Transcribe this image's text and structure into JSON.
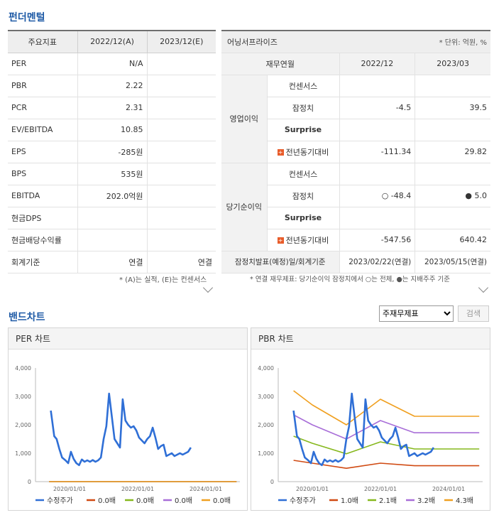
{
  "fundamentals": {
    "title": "펀더멘털",
    "header": [
      "주요지표",
      "2022/12(A)",
      "2023/12(E)"
    ],
    "rows": [
      {
        "label": "PER",
        "a": "N/A",
        "e": ""
      },
      {
        "label": "PBR",
        "a": "2.22",
        "e": ""
      },
      {
        "label": "PCR",
        "a": "2.31",
        "e": ""
      },
      {
        "label": "EV/EBITDA",
        "a": "10.85",
        "e": ""
      },
      {
        "label": "EPS",
        "a": "-285원",
        "e": ""
      },
      {
        "label": "BPS",
        "a": "535원",
        "e": ""
      },
      {
        "label": "EBITDA",
        "a": "202.0억원",
        "e": ""
      },
      {
        "label": "현금DPS",
        "a": "",
        "e": ""
      },
      {
        "label": "현금배당수익률",
        "a": "",
        "e": ""
      },
      {
        "label": "회계기준",
        "a": "연결",
        "e": "연결"
      }
    ],
    "note": "* (A)는 실적, (E)는 컨센서스"
  },
  "earnings": {
    "title": "어닝서프라이즈",
    "unit": "* 단위: 억원, %",
    "header": [
      "재무연월",
      "2022/12",
      "2023/03"
    ],
    "groups": [
      {
        "name": "영업이익",
        "rows": [
          {
            "label": "컨센서스",
            "v1": "",
            "v2": ""
          },
          {
            "label": "잠정치",
            "v1": "-4.5",
            "v2": "39.5"
          },
          {
            "label": "Surprise",
            "v1": "",
            "v2": ""
          },
          {
            "label": "전년동기대비",
            "v1": "-111.34",
            "v2": "29.82"
          }
        ]
      },
      {
        "name": "당기순이익",
        "rows": [
          {
            "label": "컨센서스",
            "v1": "",
            "v2": ""
          },
          {
            "label": "잠정치",
            "v1": "○ -48.4",
            "v2": "● 5.0"
          },
          {
            "label": "Surprise",
            "v1": "",
            "v2": ""
          },
          {
            "label": "전년동기대비",
            "v1": "-547.56",
            "v2": "640.42"
          }
        ]
      }
    ],
    "footer": {
      "label": "잠정치발표(예정)일/회계기준",
      "v1": "2023/02/22(연결)",
      "v2": "2023/05/15(연결)"
    },
    "plus_glyph": "+",
    "note": "* 연결 재무제표: 당기순이익 잠정치에서 ○는 전체, ●는 지배주주 기준"
  },
  "band": {
    "title": "밴드차트",
    "select_value": "주재무제표",
    "search_label": "검색"
  },
  "chart_data": [
    {
      "type": "line",
      "title": "PER 차트",
      "ylim": [
        0,
        4000
      ],
      "yticks": [
        "4,000",
        "3,000",
        "2,000",
        "1,000",
        "0"
      ],
      "xticks": [
        "2020/01/01",
        "2022/01/01",
        "2024/01/01"
      ],
      "x_range": [
        2019.0,
        2025.0
      ],
      "colors": {
        "price": "#2f6fd6",
        "b1": "#d04a12",
        "b2": "#86b81d",
        "b3": "#a86ed8",
        "b4": "#f0a020"
      },
      "series": [
        {
          "name": "수정주가",
          "key": "price",
          "x": [
            2019.45,
            2019.55,
            2019.62,
            2019.7,
            2019.78,
            2019.88,
            2019.96,
            2020.04,
            2020.12,
            2020.2,
            2020.28,
            2020.36,
            2020.44,
            2020.52,
            2020.6,
            2020.68,
            2020.76,
            2020.84,
            2020.92,
            2021.0,
            2021.08,
            2021.16,
            2021.24,
            2021.32,
            2021.4,
            2021.48,
            2021.56,
            2021.64,
            2021.72,
            2021.8,
            2021.88,
            2021.96,
            2022.04,
            2022.12,
            2022.2,
            2022.28,
            2022.36,
            2022.44,
            2022.52,
            2022.6,
            2022.68,
            2022.76,
            2022.84,
            2022.92,
            2023.0,
            2023.08,
            2023.16,
            2023.24,
            2023.32,
            2023.4,
            2023.48,
            2023.56
          ],
          "values": [
            2500,
            1600,
            1500,
            1150,
            850,
            750,
            650,
            1050,
            800,
            650,
            580,
            780,
            700,
            750,
            700,
            760,
            700,
            750,
            850,
            1500,
            1950,
            3100,
            2300,
            1500,
            1350,
            1200,
            2900,
            2150,
            2000,
            1900,
            1950,
            1800,
            1550,
            1450,
            1350,
            1500,
            1600,
            1900,
            1550,
            1150,
            1250,
            1300,
            900,
            950,
            1000,
            900,
            950,
            1000,
            950,
            1000,
            1050,
            1200
          ]
        },
        {
          "name": "0.0배",
          "key": "b1",
          "values": [
            0
          ]
        },
        {
          "name": "0.0배",
          "key": "b2",
          "values": [
            0
          ]
        },
        {
          "name": "0.0배",
          "key": "b3",
          "values": [
            0
          ]
        },
        {
          "name": "0.0배",
          "key": "b4",
          "values": [
            0
          ]
        }
      ]
    },
    {
      "type": "line",
      "title": "PBR 차트",
      "ylim": [
        0,
        4000
      ],
      "yticks": [
        "4,000",
        "3,000",
        "2,000",
        "1,000",
        "0"
      ],
      "xticks": [
        "2020/01/01",
        "2022/01/01",
        "2024/01/01"
      ],
      "x_range": [
        2019.0,
        2025.0
      ],
      "colors": {
        "price": "#2f6fd6",
        "b1": "#d04a12",
        "b2": "#86b81d",
        "b3": "#a86ed8",
        "b4": "#f0a020"
      },
      "series": [
        {
          "name": "수정주가",
          "key": "price",
          "x": [
            2019.45,
            2019.55,
            2019.62,
            2019.7,
            2019.78,
            2019.88,
            2019.96,
            2020.04,
            2020.12,
            2020.2,
            2020.28,
            2020.36,
            2020.44,
            2020.52,
            2020.6,
            2020.68,
            2020.76,
            2020.84,
            2020.92,
            2021.0,
            2021.08,
            2021.16,
            2021.24,
            2021.32,
            2021.4,
            2021.48,
            2021.56,
            2021.64,
            2021.72,
            2021.8,
            2021.88,
            2021.96,
            2022.04,
            2022.12,
            2022.2,
            2022.28,
            2022.36,
            2022.44,
            2022.52,
            2022.6,
            2022.68,
            2022.76,
            2022.84,
            2022.92,
            2023.0,
            2023.08,
            2023.16,
            2023.24,
            2023.32,
            2023.4,
            2023.48,
            2023.56
          ],
          "values": [
            2500,
            1600,
            1500,
            1150,
            850,
            750,
            650,
            1050,
            800,
            650,
            580,
            780,
            700,
            750,
            700,
            760,
            700,
            750,
            850,
            1500,
            1950,
            3100,
            2300,
            1500,
            1350,
            1200,
            2900,
            2150,
            2000,
            1900,
            1950,
            1800,
            1550,
            1450,
            1350,
            1500,
            1600,
            1900,
            1550,
            1150,
            1250,
            1300,
            900,
            950,
            1000,
            900,
            950,
            1000,
            950,
            1000,
            1050,
            1200
          ]
        },
        {
          "name": "1.0배",
          "key": "b1",
          "x": [
            2019.45,
            2020.0,
            2021.0,
            2022.0,
            2023.0,
            2024.9
          ],
          "values": [
            750,
            650,
            470,
            650,
            560,
            560
          ]
        },
        {
          "name": "2.1배",
          "key": "b2",
          "x": [
            2019.45,
            2020.0,
            2021.0,
            2022.0,
            2023.0,
            2024.9
          ],
          "values": [
            1600,
            1350,
            980,
            1400,
            1150,
            1150
          ]
        },
        {
          "name": "3.2배",
          "key": "b3",
          "x": [
            2019.45,
            2020.0,
            2021.0,
            2022.0,
            2023.0,
            2024.9
          ],
          "values": [
            2350,
            2000,
            1500,
            2150,
            1720,
            1720
          ]
        },
        {
          "name": "4.3배",
          "key": "b4",
          "x": [
            2019.45,
            2020.0,
            2021.0,
            2022.0,
            2023.0,
            2024.9
          ],
          "values": [
            3200,
            2700,
            2000,
            2900,
            2300,
            2300
          ]
        }
      ]
    }
  ]
}
